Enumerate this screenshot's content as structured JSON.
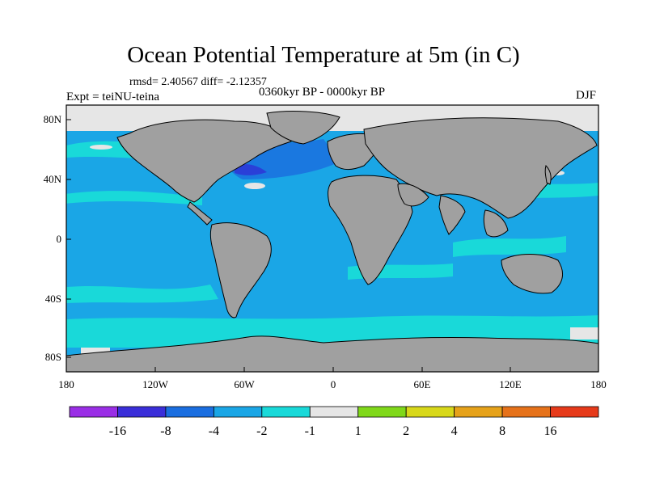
{
  "title": "Ocean Potential Temperature at 5m (in C)",
  "stats": "rmsd= 2.40567 diff= -2.12357",
  "experiment": "Expt = teiNU-teina",
  "period": "0360kyr BP - 0000kyr BP",
  "season": "DJF",
  "map": {
    "lon_ticks": [
      "180",
      "120W",
      "60W",
      "0",
      "60E",
      "120E",
      "180"
    ],
    "lat_ticks": [
      "80N",
      "40N",
      "0",
      "40S",
      "80S"
    ],
    "land_color": "#a0a0a0",
    "colors": {
      "cyan": "#19d9d9",
      "light_blue": "#1aa6e6",
      "blue": "#1a78e0",
      "dark_blue": "#2a3fd8",
      "white": "#e6e6e6",
      "green": "#80d81a"
    }
  },
  "colorbar": {
    "labels": [
      "-16",
      "-8",
      "-4",
      "-2",
      "-1",
      "1",
      "2",
      "4",
      "8",
      "16"
    ],
    "colors": [
      "#9a2ee6",
      "#3a2ed9",
      "#1a6ee0",
      "#1aa6e6",
      "#19d9d9",
      "#e6e6e6",
      "#80d81a",
      "#d8d81a",
      "#e6a21a",
      "#e6721a",
      "#e63a1a"
    ]
  }
}
